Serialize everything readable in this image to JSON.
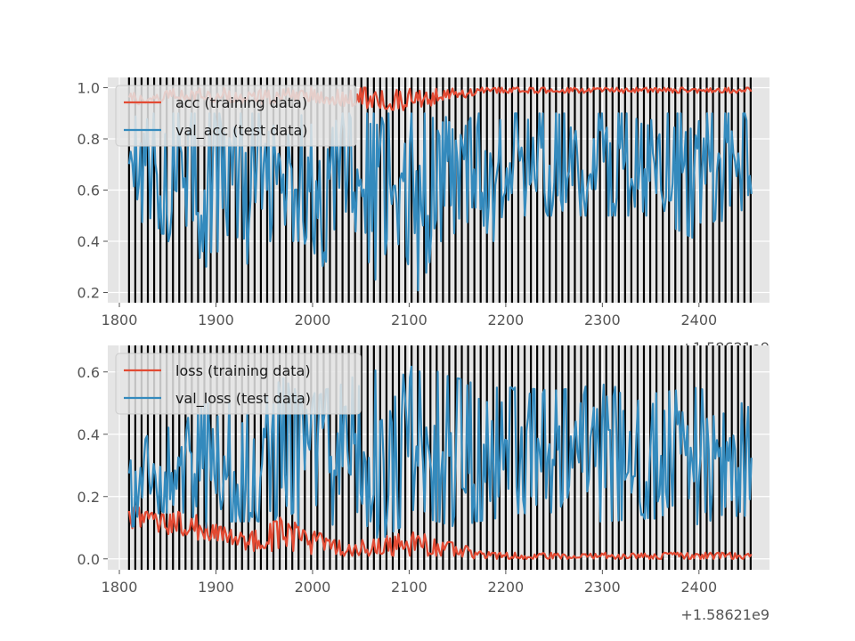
{
  "chart_data": [
    {
      "type": "line",
      "panel": "top",
      "x_offset_label": "+1.58621e9",
      "xlim": [
        1788,
        2473
      ],
      "ylim": [
        0.16,
        1.04
      ],
      "xticks": [
        1800,
        1900,
        2000,
        2100,
        2200,
        2300,
        2400
      ],
      "yticks": [
        0.2,
        0.4,
        0.6,
        0.8,
        1.0
      ],
      "xtick_labels": [
        "1800",
        "1900",
        "2000",
        "2100",
        "2200",
        "2300",
        "2400"
      ],
      "ytick_labels": [
        "0.2",
        "0.4",
        "0.6",
        "0.8",
        "1.0"
      ],
      "grid": true,
      "legend_location": "upper-left",
      "vlines": {
        "start": 1810,
        "end": 2455,
        "step": 6.5,
        "color": "#000000"
      },
      "series": [
        {
          "name": "acc (training data)",
          "color": "#E24A33",
          "x": [
            1810,
            1830,
            1850,
            1870,
            1890,
            1910,
            1930,
            1950,
            1970,
            1990,
            2010,
            2030,
            2050,
            2070,
            2090,
            2110,
            2130,
            2150,
            2170,
            2190,
            2210,
            2250,
            2300,
            2350,
            2400,
            2430,
            2455
          ],
          "y": [
            0.95,
            0.96,
            0.97,
            0.96,
            0.97,
            0.96,
            0.96,
            0.95,
            0.97,
            0.96,
            0.96,
            0.95,
            0.95,
            0.94,
            0.93,
            0.95,
            0.96,
            0.97,
            0.98,
            0.99,
            0.99,
            0.99,
            0.99,
            0.99,
            0.99,
            0.99,
            0.99
          ],
          "lower": [
            0.93,
            0.94,
            0.95,
            0.95,
            0.95,
            0.94,
            0.94,
            0.93,
            0.95,
            0.95,
            0.94,
            0.93,
            0.92,
            0.92,
            0.91,
            0.92,
            0.93,
            0.95,
            0.97,
            0.98,
            0.98,
            0.98,
            0.98,
            0.98,
            0.98,
            0.98,
            0.98
          ],
          "upper": [
            0.99,
            0.99,
            1.0,
            0.99,
            1.0,
            1.0,
            0.99,
            1.0,
            1.0,
            1.0,
            1.0,
            0.99,
            1.0,
            1.0,
            0.99,
            1.0,
            1.0,
            1.0,
            1.0,
            1.0,
            1.0,
            1.0,
            1.0,
            1.0,
            1.0,
            1.0,
            1.0
          ]
        },
        {
          "name": "val_acc (test data)",
          "color": "#348ABD",
          "x": [
            1810,
            1830,
            1850,
            1870,
            1890,
            1910,
            1930,
            1950,
            1970,
            1990,
            2010,
            2030,
            2050,
            2070,
            2090,
            2110,
            2130,
            2150,
            2170,
            2190,
            2210,
            2250,
            2300,
            2350,
            2400,
            2430,
            2455
          ],
          "y": [
            0.7,
            0.65,
            0.65,
            0.62,
            0.6,
            0.64,
            0.66,
            0.63,
            0.65,
            0.62,
            0.63,
            0.66,
            0.65,
            0.64,
            0.63,
            0.63,
            0.66,
            0.67,
            0.66,
            0.67,
            0.68,
            0.67,
            0.66,
            0.67,
            0.68,
            0.66,
            0.66
          ],
          "lower": [
            0.4,
            0.5,
            0.4,
            0.4,
            0.3,
            0.4,
            0.3,
            0.4,
            0.4,
            0.4,
            0.3,
            0.4,
            0.4,
            0.2,
            0.4,
            0.2,
            0.4,
            0.4,
            0.4,
            0.4,
            0.5,
            0.5,
            0.5,
            0.5,
            0.4,
            0.5,
            0.5
          ],
          "upper": [
            0.9,
            0.9,
            0.9,
            0.9,
            0.9,
            0.9,
            0.9,
            0.9,
            0.8,
            0.9,
            0.8,
            0.9,
            0.9,
            0.9,
            0.9,
            0.9,
            0.9,
            0.9,
            0.9,
            0.9,
            0.9,
            0.9,
            0.9,
            0.9,
            0.9,
            0.9,
            0.9
          ]
        }
      ]
    },
    {
      "type": "line",
      "panel": "bottom",
      "x_offset_label": "+1.58621e9",
      "xlim": [
        1788,
        2473
      ],
      "ylim": [
        -0.035,
        0.685
      ],
      "xticks": [
        1800,
        1900,
        2000,
        2100,
        2200,
        2300,
        2400
      ],
      "yticks": [
        0.0,
        0.2,
        0.4,
        0.6
      ],
      "xtick_labels": [
        "1800",
        "1900",
        "2000",
        "2100",
        "2200",
        "2300",
        "2400"
      ],
      "ytick_labels": [
        "0.0",
        "0.2",
        "0.4",
        "0.6"
      ],
      "grid": true,
      "legend_location": "upper-left",
      "vlines": {
        "start": 1810,
        "end": 2455,
        "step": 6.5,
        "color": "#000000"
      },
      "series": [
        {
          "name": "loss (training data)",
          "color": "#E24A33",
          "x": [
            1810,
            1830,
            1850,
            1870,
            1890,
            1910,
            1930,
            1950,
            1970,
            1990,
            2010,
            2030,
            2050,
            2070,
            2090,
            2110,
            2130,
            2150,
            2170,
            2190,
            2210,
            2250,
            2300,
            2350,
            2400,
            2430,
            2455
          ],
          "y": [
            0.14,
            0.12,
            0.1,
            0.09,
            0.08,
            0.07,
            0.05,
            0.05,
            0.06,
            0.05,
            0.04,
            0.04,
            0.03,
            0.03,
            0.04,
            0.05,
            0.03,
            0.03,
            0.02,
            0.01,
            0.01,
            0.01,
            0.01,
            0.01,
            0.01,
            0.01,
            0.01
          ],
          "lower": [
            0.1,
            0.09,
            0.08,
            0.07,
            0.05,
            0.04,
            0.03,
            0.02,
            0.03,
            0.02,
            0.01,
            0.01,
            0.01,
            0.01,
            0.01,
            0.01,
            0.01,
            0.01,
            0.0,
            0.0,
            0.0,
            0.0,
            0.0,
            0.0,
            0.0,
            0.0,
            0.0
          ],
          "upper": [
            0.18,
            0.15,
            0.14,
            0.16,
            0.12,
            0.1,
            0.08,
            0.1,
            0.14,
            0.1,
            0.08,
            0.07,
            0.06,
            0.07,
            0.08,
            0.09,
            0.06,
            0.05,
            0.03,
            0.02,
            0.02,
            0.02,
            0.02,
            0.02,
            0.02,
            0.02,
            0.02
          ]
        },
        {
          "name": "val_loss (test data)",
          "color": "#348ABD",
          "x": [
            1810,
            1830,
            1850,
            1870,
            1890,
            1910,
            1930,
            1950,
            1970,
            1990,
            2010,
            2030,
            2050,
            2070,
            2090,
            2110,
            2130,
            2150,
            2170,
            2190,
            2210,
            2250,
            2300,
            2350,
            2400,
            2430,
            2455
          ],
          "y": [
            0.22,
            0.25,
            0.28,
            0.3,
            0.3,
            0.32,
            0.33,
            0.33,
            0.34,
            0.33,
            0.33,
            0.34,
            0.35,
            0.36,
            0.35,
            0.36,
            0.35,
            0.34,
            0.34,
            0.34,
            0.34,
            0.33,
            0.33,
            0.32,
            0.33,
            0.32,
            0.3
          ],
          "lower": [
            0.1,
            0.12,
            0.14,
            0.15,
            0.1,
            0.12,
            0.12,
            0.12,
            0.13,
            0.1,
            0.12,
            0.1,
            0.11,
            0.06,
            0.1,
            0.12,
            0.12,
            0.1,
            0.12,
            0.13,
            0.13,
            0.12,
            0.12,
            0.13,
            0.11,
            0.13,
            0.13
          ],
          "upper": [
            0.32,
            0.4,
            0.42,
            0.45,
            0.5,
            0.5,
            0.52,
            0.53,
            0.58,
            0.52,
            0.54,
            0.56,
            0.6,
            0.62,
            0.58,
            0.64,
            0.6,
            0.58,
            0.56,
            0.55,
            0.55,
            0.54,
            0.56,
            0.53,
            0.55,
            0.5,
            0.5
          ]
        }
      ]
    }
  ]
}
